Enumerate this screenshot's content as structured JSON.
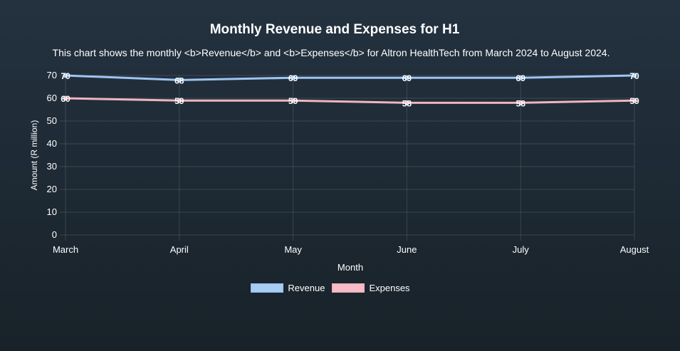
{
  "chart_data": {
    "type": "line",
    "title": "Monthly Revenue and Expenses for H1",
    "subtitle": "This chart shows the monthly <b>Revenue</b> and <b>Expenses</b> for Altron HealthTech from March 2024 to August 2024.",
    "categories": [
      "March",
      "April",
      "May",
      "June",
      "July",
      "August"
    ],
    "series": [
      {
        "name": "Revenue",
        "values": [
          70,
          68,
          69,
          69,
          69,
          70
        ],
        "labels": [
          "70",
          "68",
          "69",
          "69",
          "69",
          "70"
        ],
        "color": "#9ec5f0",
        "fill": "#a8cdf5"
      },
      {
        "name": "Expenses",
        "values": [
          60,
          59,
          59,
          58,
          58,
          59
        ],
        "labels": [
          "60",
          "59",
          "59",
          "58",
          "58",
          "59"
        ],
        "color": "#f0b4bf",
        "fill": "#f7bcc6"
      }
    ],
    "xlabel": "Month",
    "ylabel": "Amount (R million)",
    "ylim": [
      0,
      70
    ],
    "yticks": [
      "0",
      "10",
      "20",
      "30",
      "40",
      "50",
      "60",
      "70"
    ],
    "grid": true,
    "legend": "bottom"
  }
}
